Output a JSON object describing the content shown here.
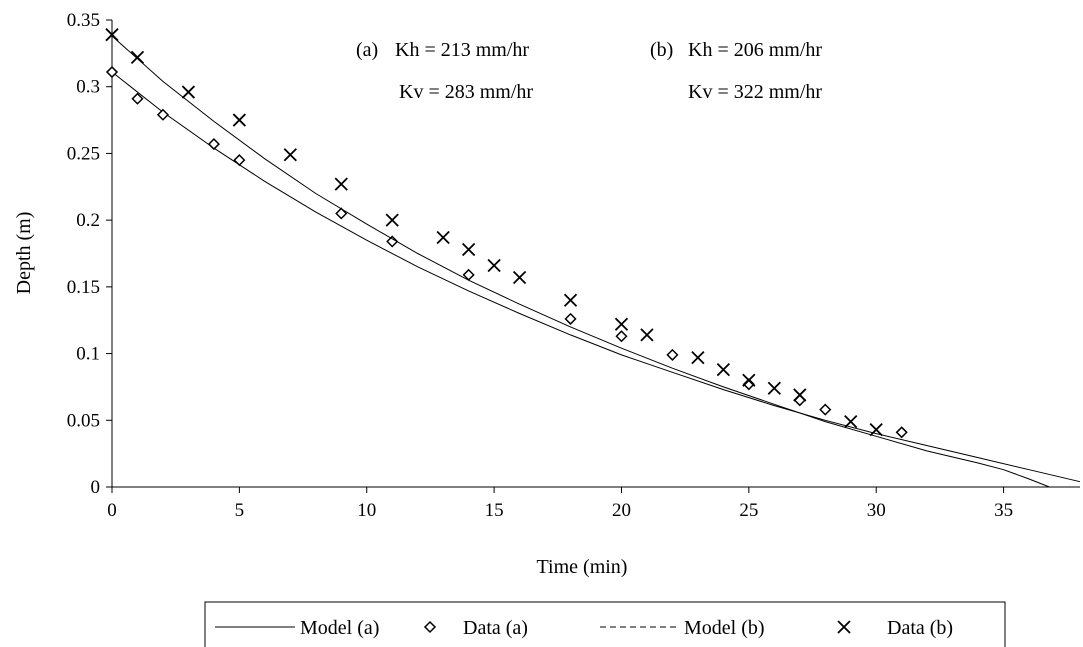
{
  "chart_data": {
    "type": "scatter",
    "title": "",
    "xlabel": "Time (min)",
    "ylabel": "Depth (m)",
    "xlim": [
      0,
      38
    ],
    "ylim": [
      0,
      0.35
    ],
    "x_ticks": [
      "0",
      "5",
      "10",
      "15",
      "20",
      "25",
      "30",
      "35"
    ],
    "y_ticks": [
      "0",
      "0.05",
      "0.1",
      "0.15",
      "0.2",
      "0.25",
      "0.3",
      "0.35"
    ],
    "grid": false,
    "legend_position": "bottom",
    "annotations": {
      "a": {
        "label": "(a)",
        "kh": "Kh = 213 mm/hr",
        "kv": "Kv = 283 mm/hr"
      },
      "b": {
        "label": "(b)",
        "kh": "Kh = 206 mm/hr",
        "kv": "Kv = 322 mm/hr"
      }
    },
    "series": [
      {
        "name": "Model (a)",
        "kind": "line",
        "points": [
          [
            0,
            0.311
          ],
          [
            2,
            0.281
          ],
          [
            4,
            0.254
          ],
          [
            6,
            0.229
          ],
          [
            8,
            0.206
          ],
          [
            10,
            0.185
          ],
          [
            12,
            0.165
          ],
          [
            14,
            0.147
          ],
          [
            16,
            0.13
          ],
          [
            18,
            0.114
          ],
          [
            20,
            0.099
          ],
          [
            22,
            0.086
          ],
          [
            24,
            0.073
          ],
          [
            26,
            0.061
          ],
          [
            28,
            0.05
          ],
          [
            30,
            0.04
          ],
          [
            32,
            0.031
          ],
          [
            34,
            0.022
          ],
          [
            36,
            0.013
          ],
          [
            38,
            0.004
          ]
        ]
      },
      {
        "name": "Data (a)",
        "kind": "marker",
        "marker": "diamond",
        "points": [
          [
            0,
            0.311
          ],
          [
            1,
            0.291
          ],
          [
            2,
            0.279
          ],
          [
            4,
            0.257
          ],
          [
            5,
            0.245
          ],
          [
            9,
            0.205
          ],
          [
            11,
            0.184
          ],
          [
            14,
            0.159
          ],
          [
            18,
            0.126
          ],
          [
            20,
            0.113
          ],
          [
            22,
            0.099
          ],
          [
            25,
            0.077
          ],
          [
            27,
            0.065
          ],
          [
            28,
            0.058
          ],
          [
            31,
            0.041
          ]
        ]
      },
      {
        "name": "Model (b)",
        "kind": "line",
        "points": [
          [
            0,
            0.338
          ],
          [
            2,
            0.304
          ],
          [
            4,
            0.274
          ],
          [
            6,
            0.246
          ],
          [
            8,
            0.22
          ],
          [
            10,
            0.197
          ],
          [
            12,
            0.175
          ],
          [
            14,
            0.155
          ],
          [
            16,
            0.137
          ],
          [
            18,
            0.12
          ],
          [
            20,
            0.104
          ],
          [
            22,
            0.089
          ],
          [
            24,
            0.075
          ],
          [
            26,
            0.062
          ],
          [
            28,
            0.049
          ],
          [
            30,
            0.038
          ],
          [
            32,
            0.027
          ],
          [
            34,
            0.018
          ],
          [
            35,
            0.013
          ],
          [
            36,
            0.006
          ],
          [
            36.8,
            0.0
          ]
        ]
      },
      {
        "name": "Data (b)",
        "kind": "marker",
        "marker": "x",
        "points": [
          [
            0,
            0.339
          ],
          [
            1,
            0.322
          ],
          [
            3,
            0.296
          ],
          [
            5,
            0.275
          ],
          [
            7,
            0.249
          ],
          [
            9,
            0.227
          ],
          [
            11,
            0.2
          ],
          [
            13,
            0.187
          ],
          [
            14,
            0.178
          ],
          [
            15,
            0.166
          ],
          [
            16,
            0.157
          ],
          [
            18,
            0.14
          ],
          [
            20,
            0.122
          ],
          [
            21,
            0.114
          ],
          [
            23,
            0.097
          ],
          [
            24,
            0.088
          ],
          [
            25,
            0.08
          ],
          [
            26,
            0.074
          ],
          [
            27,
            0.069
          ],
          [
            29,
            0.049
          ],
          [
            30,
            0.043
          ]
        ]
      }
    ],
    "legend": [
      {
        "label": "Model (a)",
        "symbol": "solid-line"
      },
      {
        "label": "Data (a)",
        "symbol": "diamond"
      },
      {
        "label": "Model (b)",
        "symbol": "dashed-line"
      },
      {
        "label": "Data (b)",
        "symbol": "x"
      }
    ]
  }
}
